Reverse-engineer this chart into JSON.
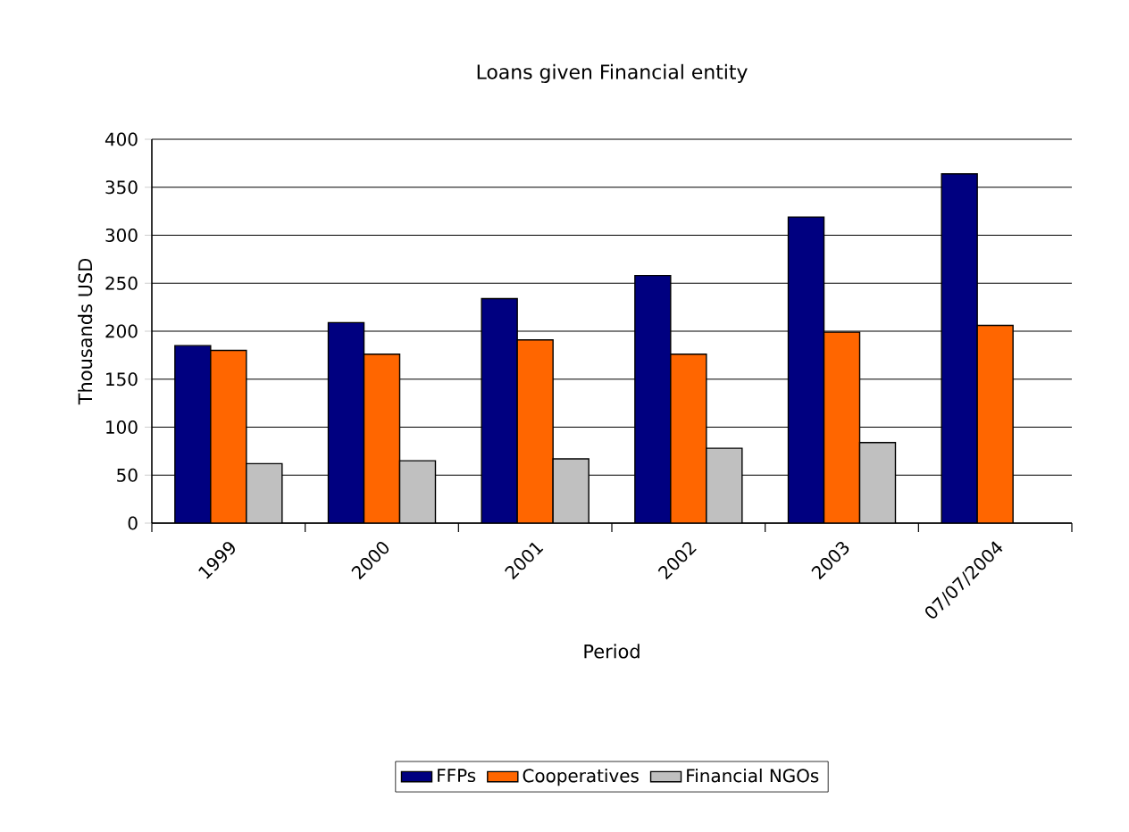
{
  "chart_data": {
    "type": "bar",
    "title": "Loans given Financial entity",
    "xlabel": "Period",
    "ylabel": "Thousands USD",
    "categories": [
      "1999",
      "2000",
      "2001",
      "2002",
      "2003",
      "07/07/2004"
    ],
    "series": [
      {
        "name": "FFPs",
        "color": "#000080",
        "values": [
          185,
          209,
          234,
          258,
          319,
          364
        ]
      },
      {
        "name": "Cooperatives",
        "color": "#ff6600",
        "values": [
          180,
          176,
          191,
          176,
          199,
          206
        ]
      },
      {
        "name": "Financial NGOs",
        "color": "#c0c0c0",
        "values": [
          62,
          65,
          67,
          78,
          84,
          null
        ]
      }
    ],
    "ylim": [
      0,
      400
    ],
    "yticks": [
      0,
      50,
      100,
      150,
      200,
      250,
      300,
      350,
      400
    ],
    "grid": "y",
    "legend": "bottom"
  }
}
